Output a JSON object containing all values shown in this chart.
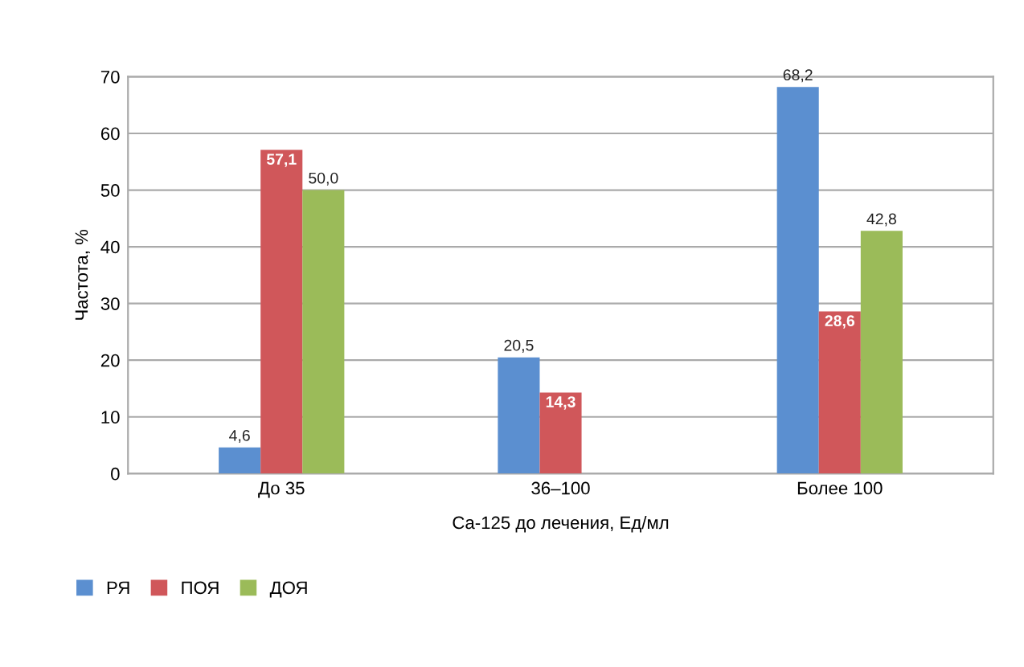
{
  "chart_data": {
    "type": "bar",
    "xlabel": "Ca-125 до лечения, Ед/мл",
    "ylabel": "Частота, %",
    "categories": [
      "До 35",
      "36–100",
      "Более 100"
    ],
    "series": [
      {
        "name": "РЯ",
        "color": "#5b8fd0",
        "values": [
          4.6,
          20.5,
          68.2
        ],
        "value_labels": [
          "4,6",
          "20,5",
          "68,2"
        ]
      },
      {
        "name": "ПОЯ",
        "color": "#d0575a",
        "values": [
          57.1,
          14.3,
          28.6
        ],
        "value_labels": [
          "57,1",
          "14,3",
          "28,6"
        ]
      },
      {
        "name": "ДОЯ",
        "color": "#9bbb59",
        "values": [
          50.0,
          null,
          42.8
        ],
        "value_labels": [
          "50,0",
          null,
          "42,8"
        ]
      }
    ],
    "ylim": [
      0,
      70
    ],
    "yticks": [
      0,
      10,
      20,
      30,
      40,
      50,
      60,
      70
    ],
    "grid": "y",
    "legend": "bottom left"
  }
}
